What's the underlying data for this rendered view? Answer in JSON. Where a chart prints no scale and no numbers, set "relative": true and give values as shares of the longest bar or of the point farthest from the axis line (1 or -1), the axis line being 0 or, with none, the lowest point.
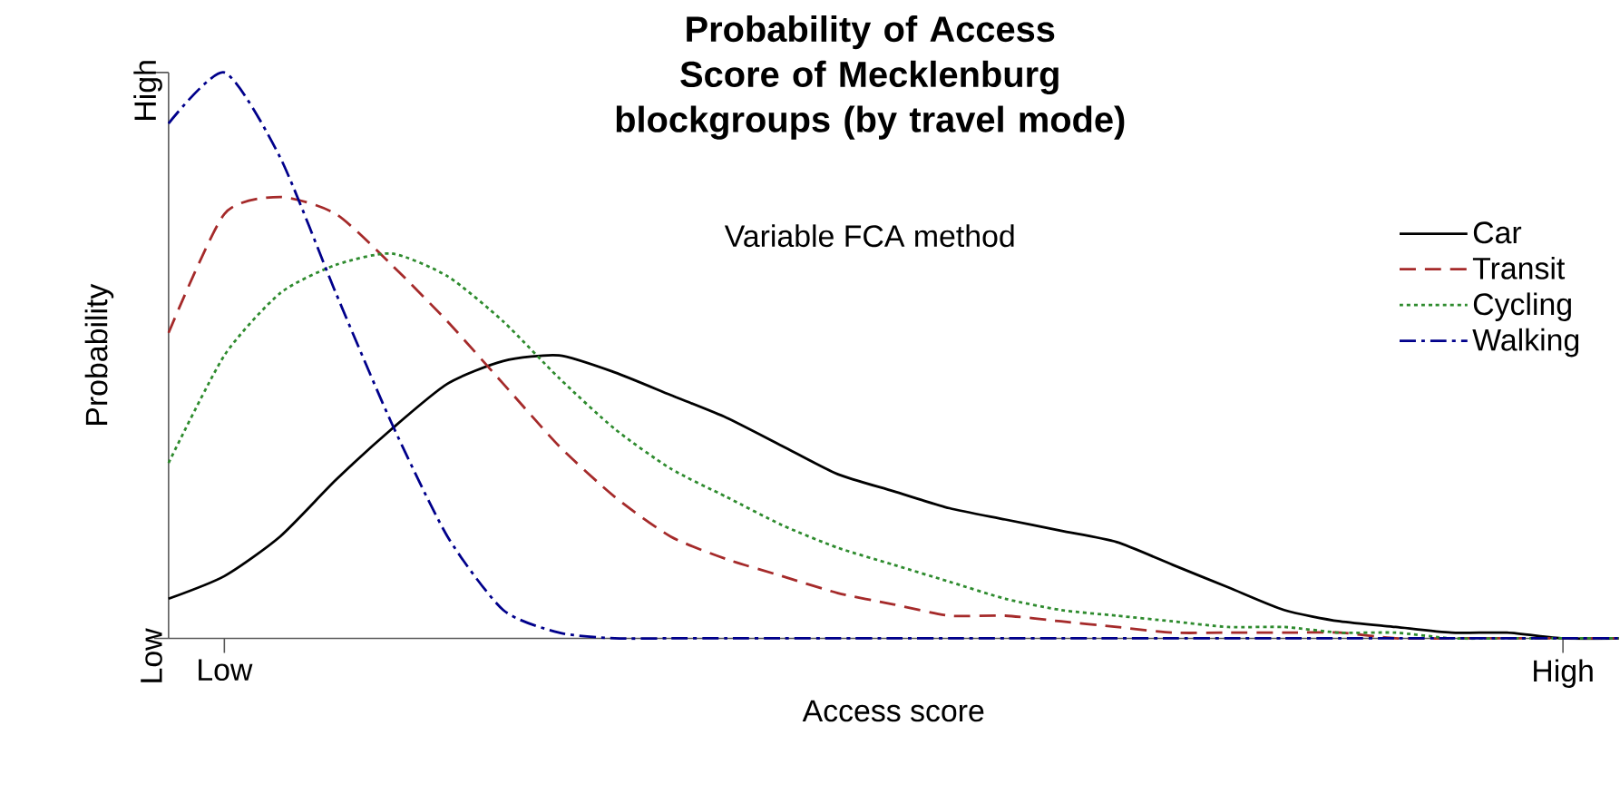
{
  "chart_data": {
    "type": "line",
    "title": "Probability of Access Score of Mecklenburg blockgroups (by travel mode)",
    "subtitle": "Variable FCA method",
    "xlabel": "Access score",
    "ylabel": "Probability",
    "relative": true,
    "categories": [
      null,
      "Low",
      null,
      null,
      null,
      null,
      null,
      null,
      null,
      null,
      null,
      null,
      null,
      null,
      null,
      null,
      null,
      null,
      null,
      null,
      null,
      null,
      null,
      null,
      null,
      "High",
      null
    ],
    "annotations": [
      "Low",
      "High"
    ],
    "legend": "right",
    "series": [
      {
        "name": "Car",
        "color": "#000000",
        "line_style": "solid",
        "values": [
          0.07,
          0.11,
          0.18,
          0.28,
          0.37,
          0.45,
          0.49,
          0.5,
          0.47,
          0.43,
          0.39,
          0.34,
          0.29,
          0.26,
          0.23,
          0.21,
          0.19,
          0.17,
          0.13,
          0.09,
          0.05,
          0.03,
          0.02,
          0.01,
          0.01,
          0,
          0
        ]
      },
      {
        "name": "Transit",
        "color": "#a52a2a",
        "line_style": "dashed",
        "values": [
          0.54,
          0.75,
          0.78,
          0.75,
          0.66,
          0.56,
          0.45,
          0.34,
          0.25,
          0.18,
          0.14,
          0.11,
          0.08,
          0.06,
          0.04,
          0.04,
          0.03,
          0.02,
          0.01,
          0.01,
          0.01,
          0.01,
          0,
          0,
          0,
          0,
          0
        ]
      },
      {
        "name": "Cycling",
        "color": "#2e8b2e",
        "line_style": "dotted",
        "values": [
          0.31,
          0.5,
          0.61,
          0.66,
          0.68,
          0.64,
          0.56,
          0.46,
          0.37,
          0.3,
          0.25,
          0.2,
          0.16,
          0.13,
          0.1,
          0.07,
          0.05,
          0.04,
          0.03,
          0.02,
          0.02,
          0.01,
          0.01,
          0,
          0,
          0,
          0
        ]
      },
      {
        "name": "Walking",
        "color": "#00008b",
        "line_style": "dashdot",
        "values": [
          0.91,
          1,
          0.85,
          0.61,
          0.38,
          0.18,
          0.05,
          0.01,
          0,
          0,
          0,
          0,
          0,
          0,
          0,
          0,
          0,
          0,
          0,
          0,
          0,
          0,
          0,
          0,
          0,
          0,
          0
        ]
      }
    ]
  }
}
